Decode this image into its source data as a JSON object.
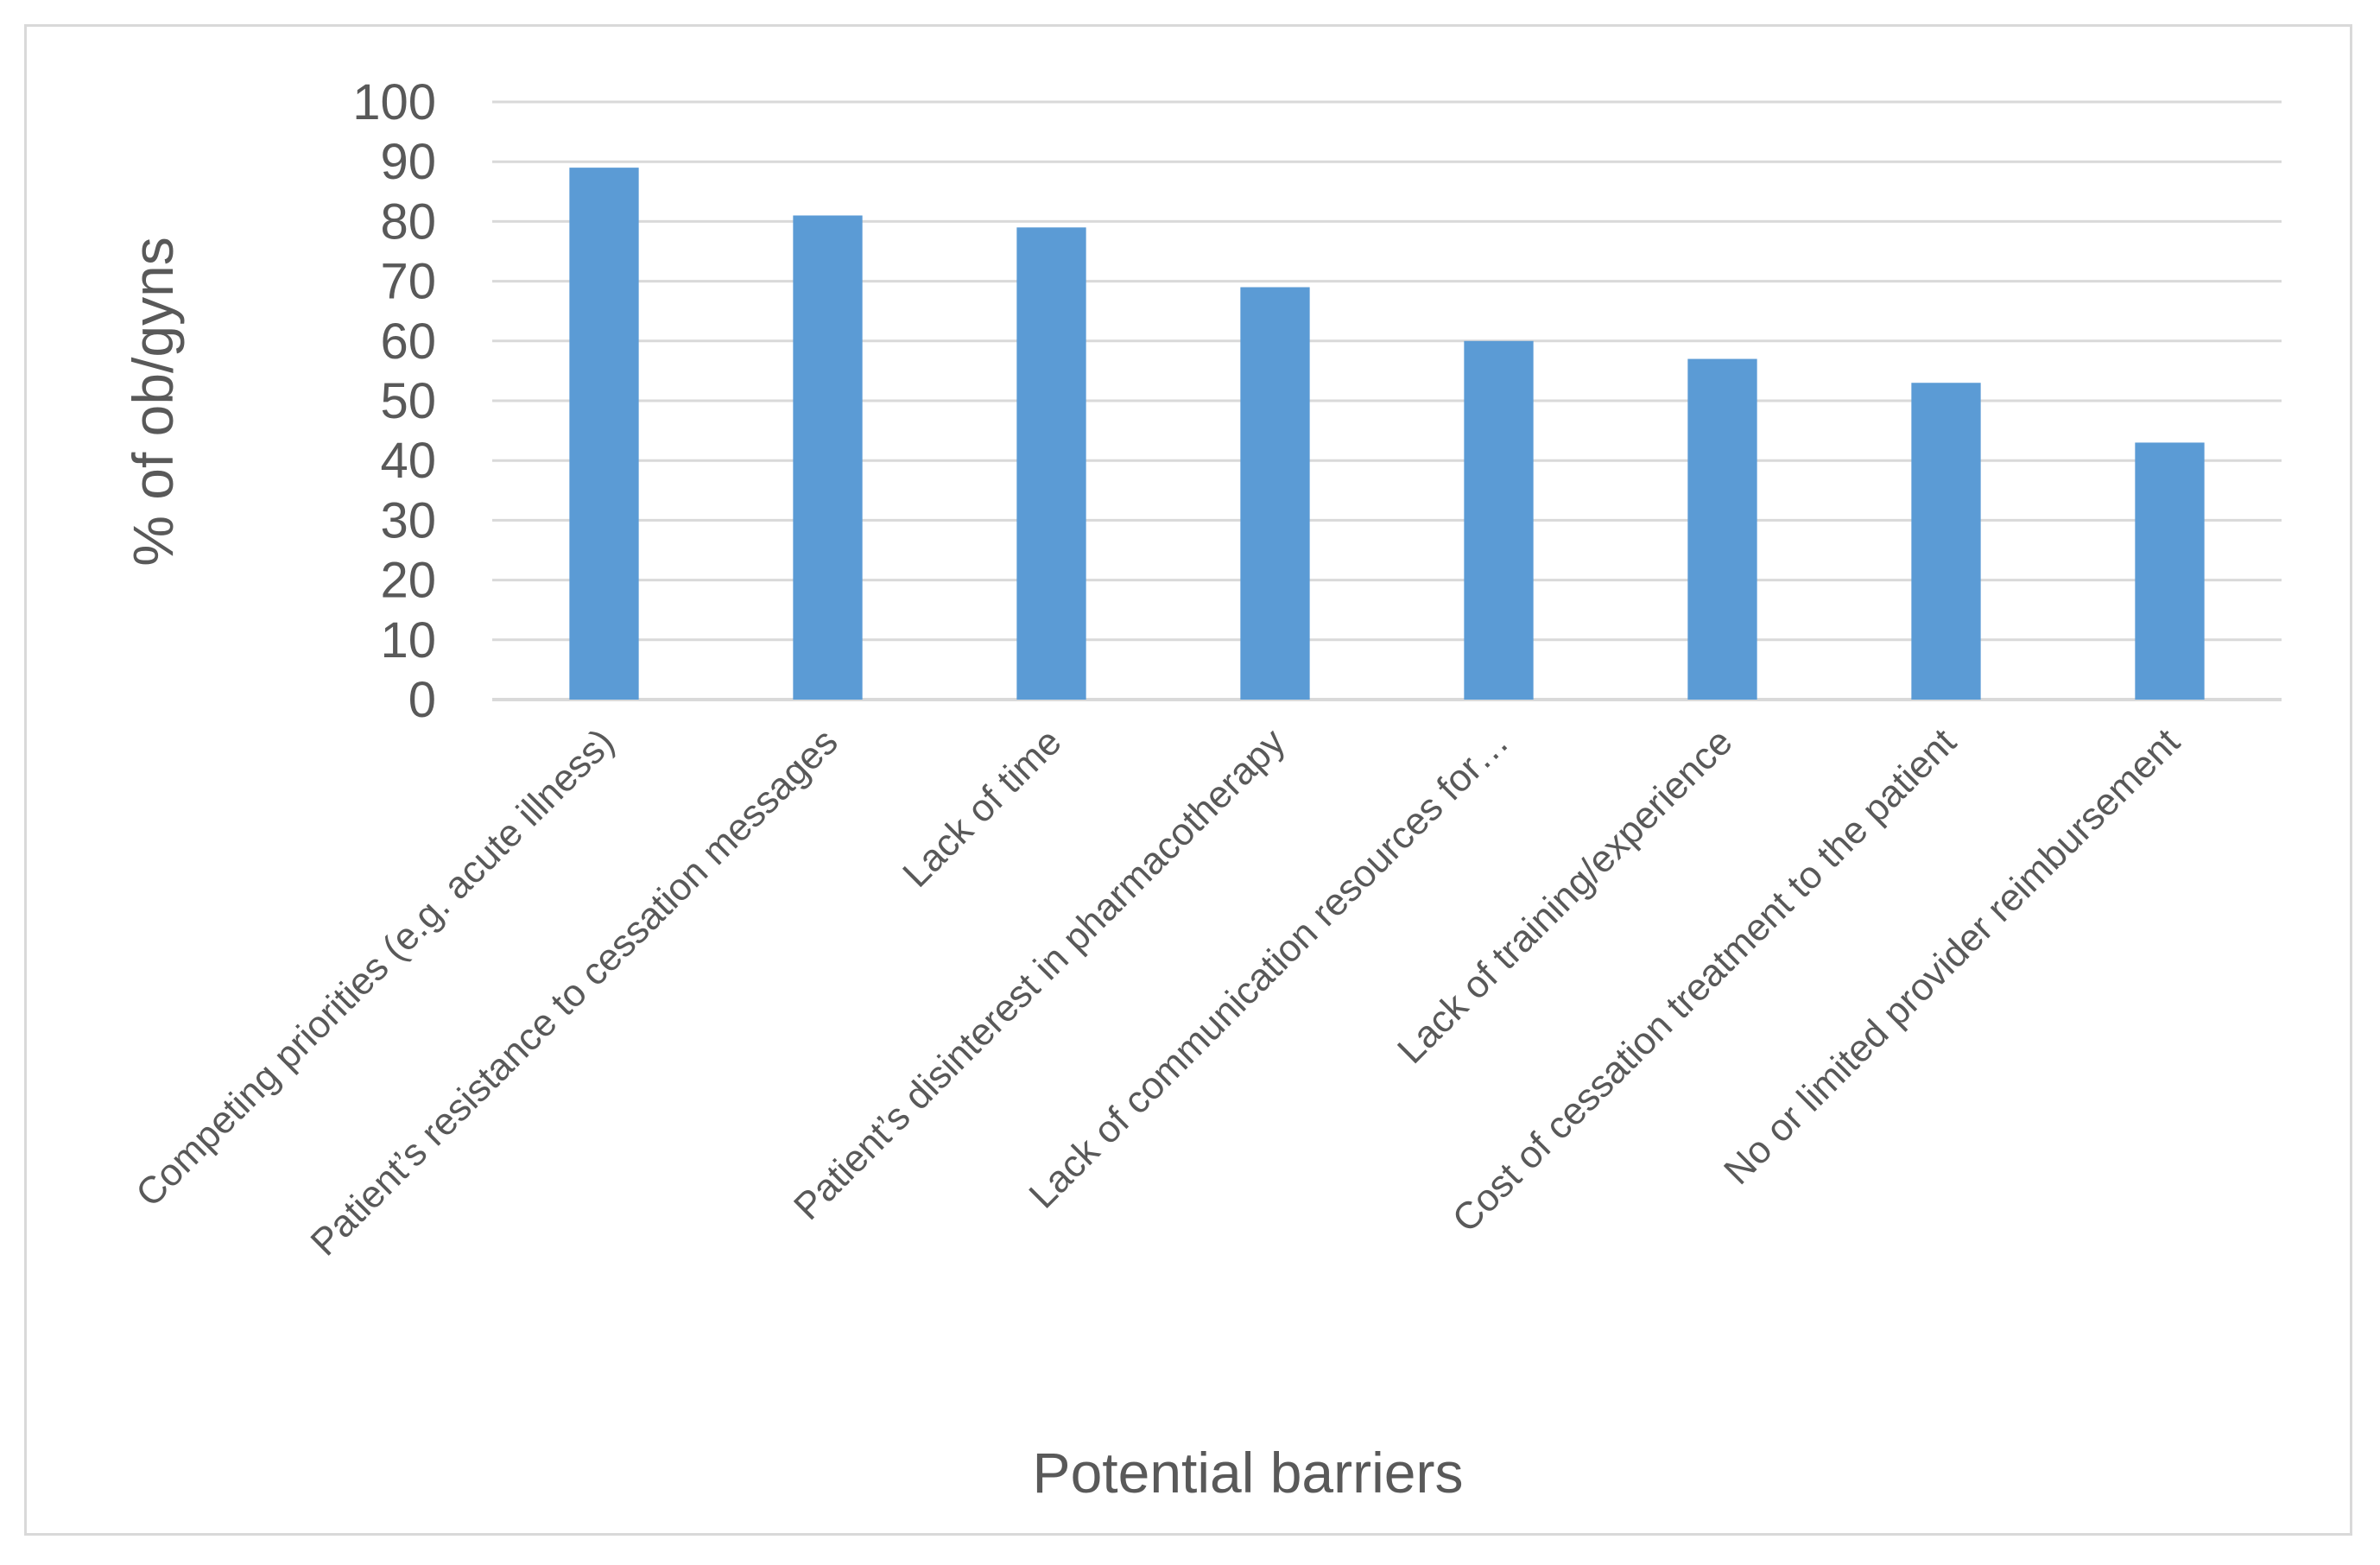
{
  "chart_data": {
    "type": "bar",
    "title": "",
    "xlabel": "Potential barriers",
    "ylabel": "%  of ob/gyns",
    "ylim": [
      0,
      100
    ],
    "yticks": [
      0,
      10,
      20,
      30,
      40,
      50,
      60,
      70,
      80,
      90,
      100
    ],
    "grid": true,
    "legend": "none",
    "bar_color": "#5b9bd5",
    "grid_color": "#d9d9d9",
    "categories": [
      "Competing priorities (e.g. acute illness)",
      "Patient’s resistance to cessation messages",
      "Lack of time",
      "Patient’s disinterest in pharmacotherapy",
      "Lack of communication resources for…",
      "Lack of training/experience",
      "Cost of cessation treatment to the patient",
      "No or limited provider reimbursement"
    ],
    "values": [
      89,
      81,
      79,
      69,
      60,
      57,
      53,
      43
    ]
  }
}
